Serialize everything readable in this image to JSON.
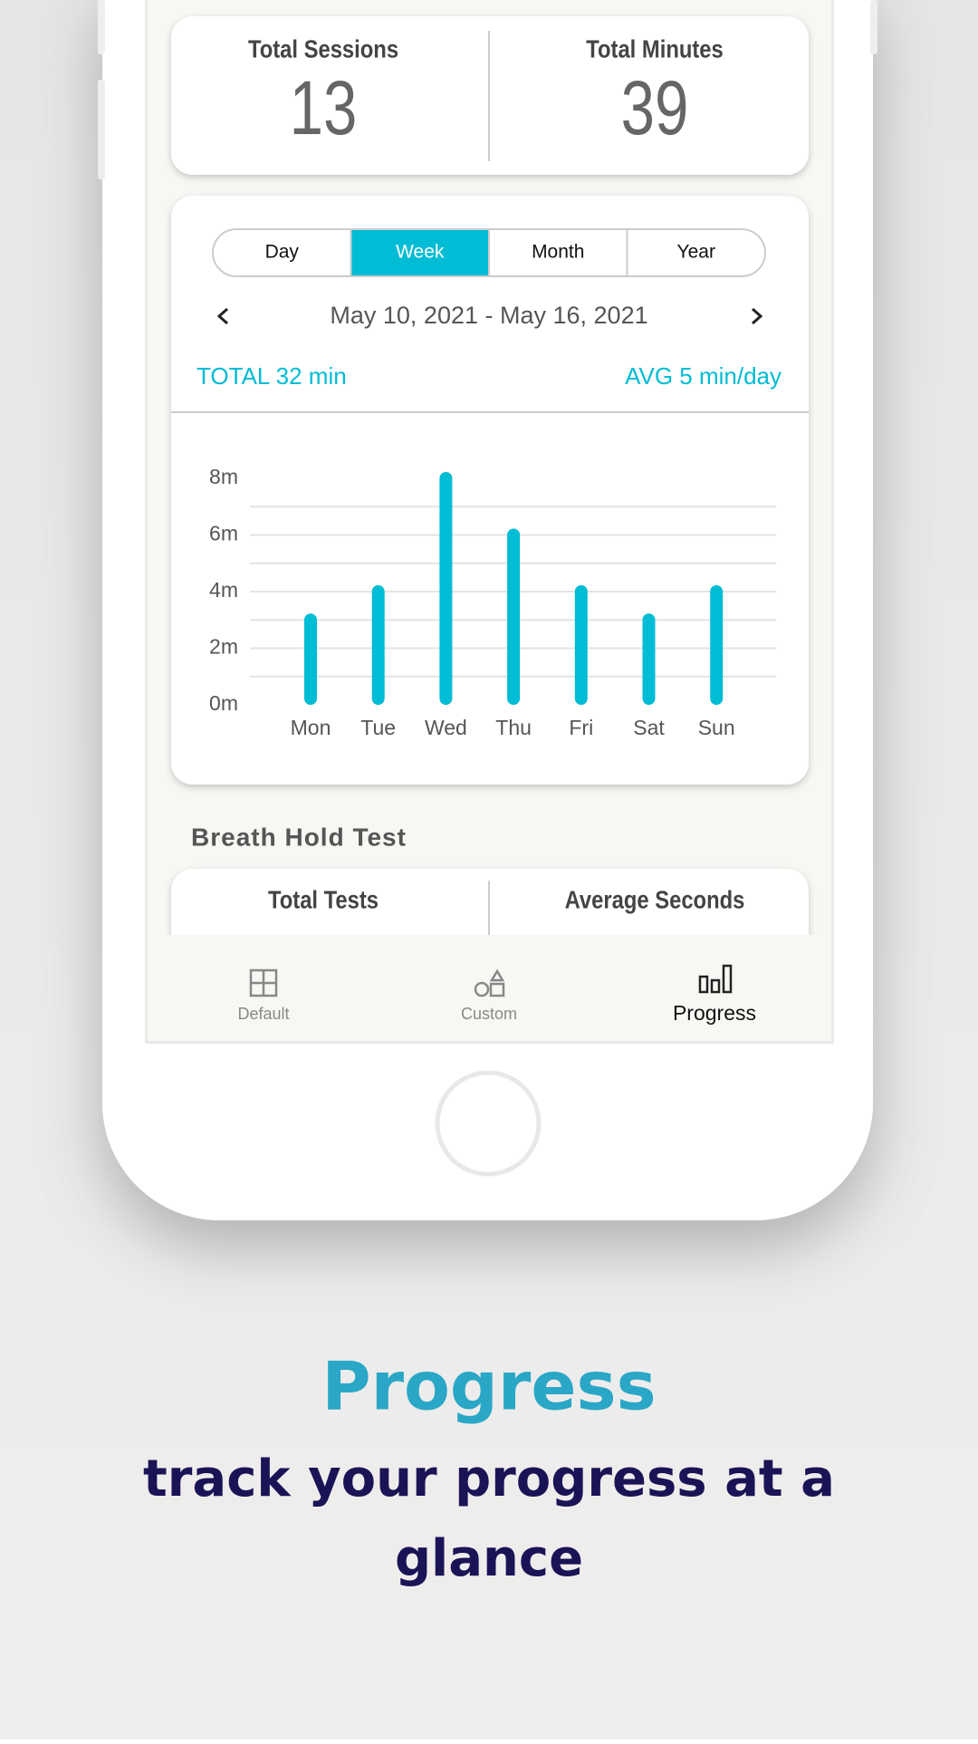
{
  "stats": [
    {
      "label": "Total Sessions",
      "value": 13
    },
    {
      "label": "Total Minutes",
      "value": 39
    }
  ],
  "tabs": [
    {
      "label": "Day"
    },
    {
      "label": "Week",
      "selected": true
    },
    {
      "label": "Month"
    },
    {
      "label": "Year"
    }
  ],
  "date_range": "May 10, 2021 - May 16, 2021",
  "total": "TOTAL 32 min",
  "average": "AVG 5 min/day",
  "chart_data": {
    "type": "bar",
    "categories": [
      "Mon",
      "Tue",
      "Wed",
      "Thu",
      "Fri",
      "Sat",
      "Sun"
    ],
    "values": [
      3,
      4,
      8,
      6,
      4,
      3,
      4
    ],
    "color": "#00bcd4",
    "ylim": [
      0,
      8
    ],
    "yticks": [
      {
        "value": 0,
        "label": "0m"
      },
      {
        "value": 2,
        "label": "2m"
      },
      {
        "value": 4,
        "label": "4m"
      },
      {
        "value": 6,
        "label": "6m"
      },
      {
        "value": 8,
        "label": "8m"
      }
    ],
    "grid_lines": [
      1,
      2,
      3,
      4,
      5,
      6,
      7
    ]
  },
  "section_title": "Breath Hold Test",
  "test_stats": [
    {
      "label": "Total Tests"
    },
    {
      "label": "Average Seconds"
    }
  ],
  "nav": [
    {
      "label": "Default"
    },
    {
      "label": "Custom"
    },
    {
      "label": "Progress",
      "selected": true
    }
  ],
  "headline": "Progress",
  "tagline_lines": [
    "track your progress at a",
    "glance"
  ]
}
